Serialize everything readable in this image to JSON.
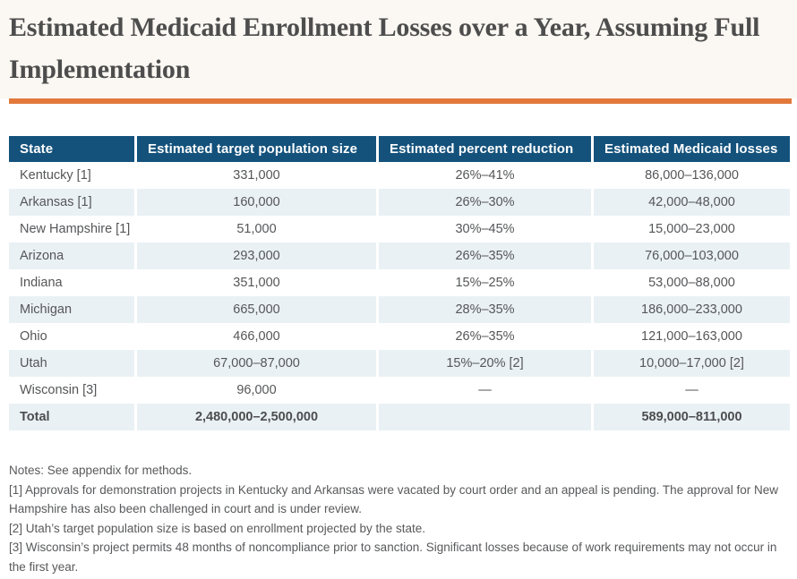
{
  "page": {
    "accent_color": "#e2793b",
    "header_bg": "#14527c",
    "zebra_row_color": "#eaf1f5",
    "hero_bg": "#fbf7f2"
  },
  "chart_data": {
    "type": "table",
    "title": "Estimated Medicaid Enrollment Losses over a Year, Assuming Full Implementation",
    "columns": [
      "State",
      "Estimated target population size",
      "Estimated percent reduction",
      "Estimated Medicaid losses"
    ],
    "rows": [
      {
        "state": "Kentucky [1]",
        "population": "331,000",
        "percent": "26%–41%",
        "losses": "86,000–136,000"
      },
      {
        "state": "Arkansas [1]",
        "population": "160,000",
        "percent": "26%–30%",
        "losses": "42,000–48,000"
      },
      {
        "state": "New Hampshire [1]",
        "population": "51,000",
        "percent": "30%–45%",
        "losses": "15,000–23,000"
      },
      {
        "state": "Arizona",
        "population": "293,000",
        "percent": "26%–35%",
        "losses": "76,000–103,000"
      },
      {
        "state": "Indiana",
        "population": "351,000",
        "percent": "15%–25%",
        "losses": "53,000–88,000"
      },
      {
        "state": "Michigan",
        "population": "665,000",
        "percent": "28%–35%",
        "losses": "186,000–233,000"
      },
      {
        "state": "Ohio",
        "population": "466,000",
        "percent": "26%–35%",
        "losses": "121,000–163,000"
      },
      {
        "state": "Utah",
        "population": "67,000–87,000",
        "percent": "15%–20% [2]",
        "losses": "10,000–17,000 [2]"
      },
      {
        "state": "Wisconsin [3]",
        "population": "96,000",
        "percent": "—",
        "losses": "—"
      },
      {
        "state": "Total",
        "population": "2,480,000–2,500,000",
        "percent": "",
        "losses": "589,000–811,000",
        "bold": true
      }
    ],
    "notes": [
      "Notes: See appendix for methods.",
      "[1] Approvals for demonstration projects in Kentucky and Arkansas were vacated by court order and an appeal is pending. The approval for New Hampshire has also been challenged in court and is under review.",
      "[2] Utah’s target population size is based on enrollment projected by the state.",
      "[3] Wisconsin’s project permits 48 months of noncompliance prior to sanction. Significant losses because of work requirements may not occur in the first year."
    ]
  }
}
